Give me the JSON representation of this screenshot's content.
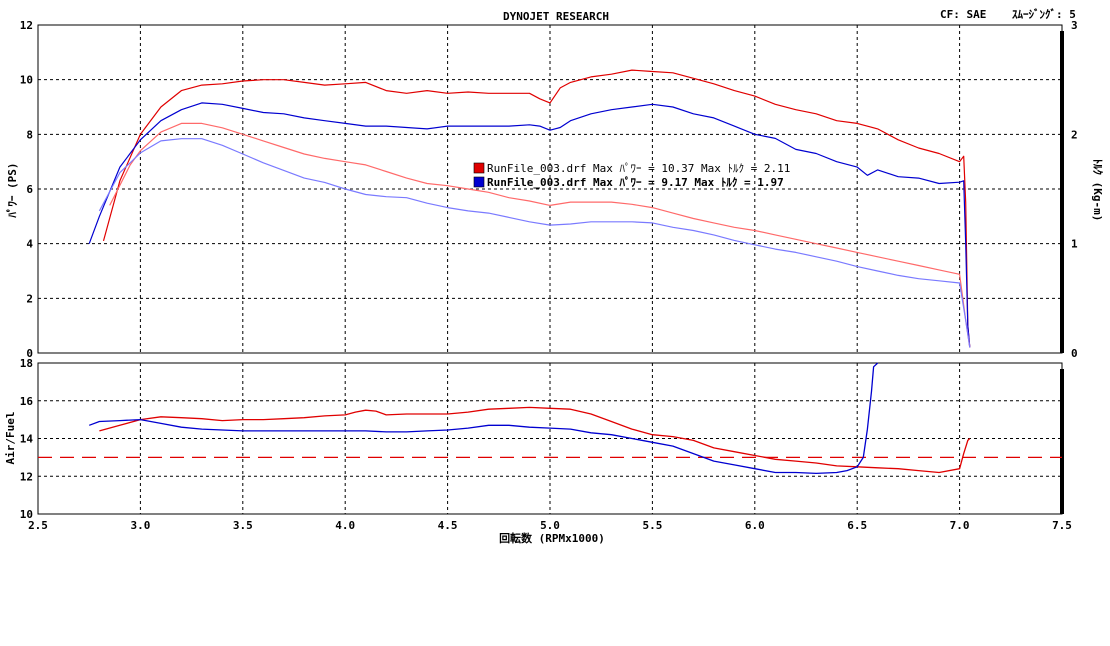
{
  "header": {
    "title": "DYNOJET  RESEARCH",
    "correction": "CF: SAE",
    "smoothing": "ｽﾑｰｼﾞﾝｸﾞ: 5"
  },
  "axes": {
    "xlabel": "回転数 (RPMx1000)",
    "power_label": "ﾊﾟﾜｰ (PS)",
    "torque_label": "ﾄﾙｸ (Kg-m)",
    "af_label": "Air/Fuel"
  },
  "legend": {
    "run1": "RunFile_003.drf Max ﾊﾟﾜｰ = 10.37     Max ﾄﾙｸ = 2.11",
    "run2": "RunFile_003.drf Max ﾊﾟﾜｰ = 9.17     Max ﾄﾙｸ = 1.97"
  },
  "colors": {
    "run1": "#e00000",
    "run2": "#0000d0",
    "run1_light": "#ff6a6a",
    "run2_light": "#7a7aff",
    "reference": "#e00000"
  },
  "chart_data": [
    {
      "type": "line",
      "title": "DYNOJET  RESEARCH",
      "xlabel": "回転数 (RPMx1000)",
      "ylabel": "ﾊﾟﾜｰ (PS)",
      "y2label": "ﾄﾙｸ (Kg-m)",
      "xlim": [
        2.5,
        7.5
      ],
      "ylim": [
        0,
        12
      ],
      "y2lim": [
        0,
        3
      ],
      "xticks": [
        "2.5",
        "3.0",
        "3.5",
        "4.0",
        "4.5",
        "5.0",
        "5.5",
        "6.0",
        "6.5",
        "7.0",
        "7.5"
      ],
      "yticks": [
        "0",
        "2",
        "4",
        "6",
        "8",
        "10",
        "12"
      ],
      "y2ticks": [
        "0",
        "1",
        "2",
        "3"
      ],
      "grid": true,
      "series": [
        {
          "name": "RunFile_003.drf",
          "quantity": "power",
          "axis": "y",
          "color": "#e00000",
          "x": [
            2.82,
            2.9,
            3.0,
            3.1,
            3.2,
            3.3,
            3.4,
            3.5,
            3.6,
            3.7,
            3.8,
            3.9,
            4.0,
            4.1,
            4.2,
            4.3,
            4.4,
            4.5,
            4.6,
            4.7,
            4.8,
            4.9,
            4.95,
            5.0,
            5.05,
            5.1,
            5.2,
            5.3,
            5.4,
            5.5,
            5.6,
            5.7,
            5.8,
            5.9,
            6.0,
            6.1,
            6.2,
            6.3,
            6.4,
            6.5,
            6.6,
            6.7,
            6.8,
            6.9,
            7.0,
            7.02,
            7.03,
            7.04,
            7.05
          ],
          "y": [
            4.1,
            6.3,
            8.0,
            9.0,
            9.6,
            9.8,
            9.85,
            9.95,
            10.0,
            10.0,
            9.9,
            9.8,
            9.85,
            9.9,
            9.6,
            9.5,
            9.6,
            9.5,
            9.55,
            9.5,
            9.5,
            9.5,
            9.3,
            9.15,
            9.7,
            9.9,
            10.1,
            10.2,
            10.35,
            10.3,
            10.25,
            10.05,
            9.85,
            9.6,
            9.4,
            9.1,
            8.9,
            8.75,
            8.5,
            8.4,
            8.2,
            7.8,
            7.5,
            7.3,
            7.0,
            7.2,
            5.5,
            1.0,
            0.2
          ]
        },
        {
          "name": "RunFile_003.drf",
          "quantity": "power",
          "axis": "y",
          "color": "#0000d0",
          "x": [
            2.75,
            2.8,
            2.9,
            3.0,
            3.1,
            3.2,
            3.3,
            3.4,
            3.5,
            3.6,
            3.7,
            3.8,
            3.9,
            4.0,
            4.1,
            4.2,
            4.3,
            4.4,
            4.5,
            4.6,
            4.7,
            4.8,
            4.9,
            4.95,
            5.0,
            5.05,
            5.1,
            5.2,
            5.3,
            5.4,
            5.5,
            5.6,
            5.7,
            5.8,
            5.9,
            6.0,
            6.1,
            6.2,
            6.3,
            6.4,
            6.5,
            6.55,
            6.6,
            6.7,
            6.8,
            6.9,
            7.0,
            7.02,
            7.03,
            7.04,
            7.05
          ],
          "y": [
            4.0,
            5.0,
            6.8,
            7.8,
            8.5,
            8.9,
            9.15,
            9.1,
            8.95,
            8.8,
            8.75,
            8.6,
            8.5,
            8.4,
            8.3,
            8.3,
            8.25,
            8.2,
            8.3,
            8.3,
            8.3,
            8.3,
            8.35,
            8.3,
            8.15,
            8.25,
            8.5,
            8.75,
            8.9,
            9.0,
            9.1,
            9.0,
            8.75,
            8.6,
            8.3,
            8.0,
            7.85,
            7.45,
            7.3,
            7.0,
            6.8,
            6.5,
            6.7,
            6.45,
            6.4,
            6.2,
            6.25,
            6.3,
            4.0,
            1.0,
            0.2
          ]
        },
        {
          "name": "RunFile_003.drf",
          "quantity": "torque",
          "axis": "y2",
          "color": "#ff6a6a",
          "x": [
            2.85,
            2.95,
            3.0,
            3.1,
            3.2,
            3.3,
            3.4,
            3.5,
            3.6,
            3.7,
            3.8,
            3.9,
            4.0,
            4.1,
            4.2,
            4.3,
            4.4,
            4.5,
            4.6,
            4.7,
            4.8,
            4.9,
            5.0,
            5.1,
            5.2,
            5.3,
            5.4,
            5.5,
            5.6,
            5.7,
            5.8,
            5.9,
            6.0,
            6.1,
            6.2,
            6.3,
            6.4,
            6.5,
            6.6,
            6.7,
            6.8,
            6.9,
            7.0,
            7.03,
            7.05
          ],
          "y": [
            1.35,
            1.72,
            1.85,
            2.02,
            2.1,
            2.1,
            2.06,
            2.0,
            1.94,
            1.88,
            1.82,
            1.78,
            1.75,
            1.72,
            1.66,
            1.6,
            1.55,
            1.53,
            1.5,
            1.47,
            1.42,
            1.39,
            1.35,
            1.38,
            1.38,
            1.38,
            1.36,
            1.33,
            1.28,
            1.23,
            1.19,
            1.15,
            1.12,
            1.08,
            1.04,
            1.0,
            0.96,
            0.92,
            0.88,
            0.84,
            0.8,
            0.76,
            0.72,
            0.3,
            0.05
          ]
        },
        {
          "name": "RunFile_003.drf",
          "quantity": "torque",
          "axis": "y2",
          "color": "#7a7aff",
          "x": [
            2.8,
            2.9,
            3.0,
            3.1,
            3.2,
            3.3,
            3.4,
            3.5,
            3.6,
            3.7,
            3.8,
            3.9,
            4.0,
            4.1,
            4.2,
            4.3,
            4.4,
            4.5,
            4.6,
            4.7,
            4.8,
            4.9,
            5.0,
            5.1,
            5.2,
            5.3,
            5.4,
            5.5,
            5.6,
            5.7,
            5.8,
            5.9,
            6.0,
            6.1,
            6.2,
            6.3,
            6.4,
            6.5,
            6.6,
            6.7,
            6.8,
            6.9,
            7.0,
            7.03,
            7.05
          ],
          "y": [
            1.3,
            1.65,
            1.83,
            1.94,
            1.96,
            1.96,
            1.9,
            1.82,
            1.74,
            1.67,
            1.6,
            1.56,
            1.5,
            1.45,
            1.43,
            1.42,
            1.37,
            1.33,
            1.3,
            1.28,
            1.24,
            1.2,
            1.17,
            1.18,
            1.2,
            1.2,
            1.2,
            1.19,
            1.15,
            1.12,
            1.08,
            1.03,
            0.99,
            0.95,
            0.92,
            0.88,
            0.84,
            0.79,
            0.75,
            0.71,
            0.68,
            0.66,
            0.64,
            0.3,
            0.05
          ]
        }
      ]
    },
    {
      "type": "line",
      "xlabel": "回転数 (RPMx1000)",
      "ylabel": "Air/Fuel",
      "xlim": [
        2.5,
        7.5
      ],
      "ylim": [
        10,
        18
      ],
      "yticks": [
        "10",
        "12",
        "14",
        "16",
        "18"
      ],
      "grid": true,
      "reference_line": {
        "y": 13,
        "color": "#e00000",
        "style": "dashed"
      },
      "series": [
        {
          "name": "RunFile_003.drf",
          "color": "#e00000",
          "x": [
            2.8,
            2.9,
            3.0,
            3.1,
            3.2,
            3.3,
            3.4,
            3.5,
            3.6,
            3.7,
            3.8,
            3.9,
            4.0,
            4.05,
            4.1,
            4.15,
            4.2,
            4.3,
            4.4,
            4.5,
            4.6,
            4.7,
            4.8,
            4.9,
            5.0,
            5.1,
            5.2,
            5.3,
            5.4,
            5.5,
            5.6,
            5.7,
            5.8,
            5.9,
            6.0,
            6.1,
            6.2,
            6.3,
            6.4,
            6.5,
            6.6,
            6.7,
            6.8,
            6.9,
            7.0,
            7.02,
            7.04,
            7.05
          ],
          "y": [
            14.4,
            14.7,
            15.0,
            15.15,
            15.1,
            15.05,
            14.95,
            15.0,
            15.0,
            15.05,
            15.1,
            15.2,
            15.25,
            15.4,
            15.5,
            15.45,
            15.25,
            15.3,
            15.3,
            15.3,
            15.4,
            15.55,
            15.6,
            15.65,
            15.6,
            15.55,
            15.3,
            14.9,
            14.5,
            14.2,
            14.1,
            13.9,
            13.5,
            13.3,
            13.1,
            12.9,
            12.8,
            12.7,
            12.55,
            12.5,
            12.45,
            12.4,
            12.3,
            12.2,
            12.4,
            13.2,
            13.9,
            14.0
          ]
        },
        {
          "name": "RunFile_003.drf",
          "color": "#0000d0",
          "x": [
            2.75,
            2.8,
            2.9,
            3.0,
            3.1,
            3.2,
            3.3,
            3.4,
            3.5,
            3.6,
            3.7,
            3.8,
            3.9,
            4.0,
            4.1,
            4.2,
            4.3,
            4.4,
            4.5,
            4.6,
            4.7,
            4.8,
            4.9,
            5.0,
            5.1,
            5.2,
            5.3,
            5.4,
            5.5,
            5.6,
            5.7,
            5.8,
            5.9,
            6.0,
            6.1,
            6.2,
            6.3,
            6.4,
            6.45,
            6.5,
            6.53,
            6.55,
            6.57,
            6.58,
            6.6
          ],
          "y": [
            14.7,
            14.9,
            14.95,
            15.0,
            14.8,
            14.6,
            14.5,
            14.45,
            14.4,
            14.4,
            14.4,
            14.4,
            14.4,
            14.4,
            14.4,
            14.35,
            14.35,
            14.4,
            14.45,
            14.55,
            14.7,
            14.7,
            14.6,
            14.55,
            14.5,
            14.3,
            14.2,
            14.0,
            13.8,
            13.6,
            13.2,
            12.8,
            12.6,
            12.4,
            12.2,
            12.2,
            12.15,
            12.2,
            12.3,
            12.5,
            13.0,
            14.5,
            16.5,
            17.8,
            18.0
          ]
        }
      ]
    }
  ]
}
